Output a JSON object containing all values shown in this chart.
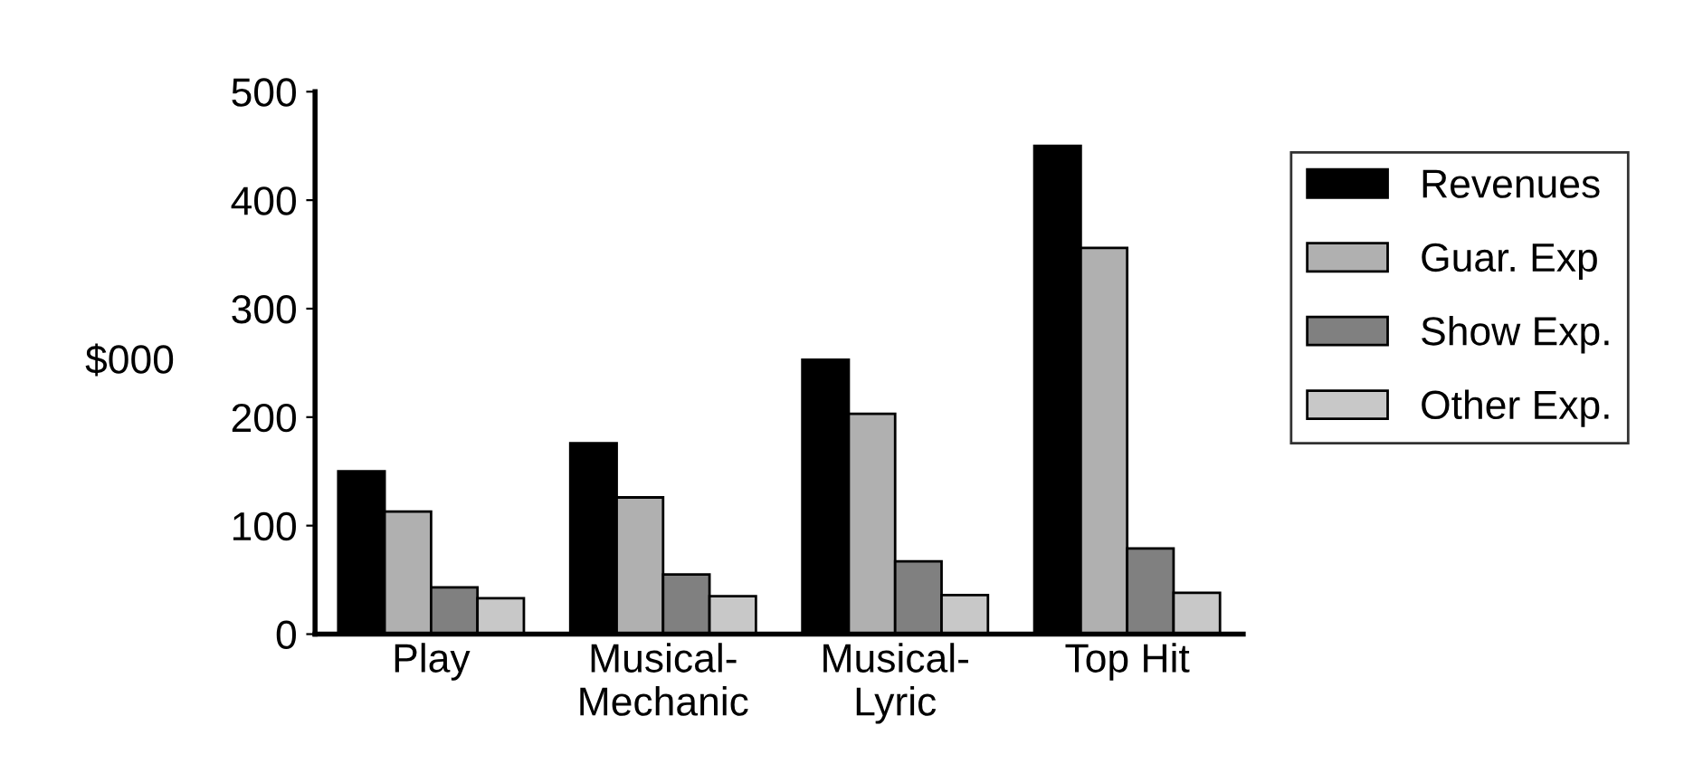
{
  "chart_data": {
    "type": "bar",
    "ylabel": "$000",
    "categories": [
      "Play",
      "Musical-\nMechanic",
      "Musical-\nLyric",
      "Top Hit"
    ],
    "series": [
      {
        "name": "Revenues",
        "color": "#000000",
        "values": [
          150,
          176,
          253,
          450
        ]
      },
      {
        "name": "Guar. Exp",
        "color": "#b0b0b0",
        "values": [
          113,
          126,
          203,
          356
        ]
      },
      {
        "name": "Show Exp.",
        "color": "#808080",
        "values": [
          43,
          55,
          67,
          79
        ]
      },
      {
        "name": "Other Exp.",
        "color": "#c8c8c8",
        "values": [
          33,
          35,
          36,
          38
        ]
      }
    ],
    "ylim": [
      0,
      500
    ],
    "yticks": [
      0,
      100,
      200,
      300,
      400,
      500
    ],
    "grid": false,
    "legend": "right"
  }
}
